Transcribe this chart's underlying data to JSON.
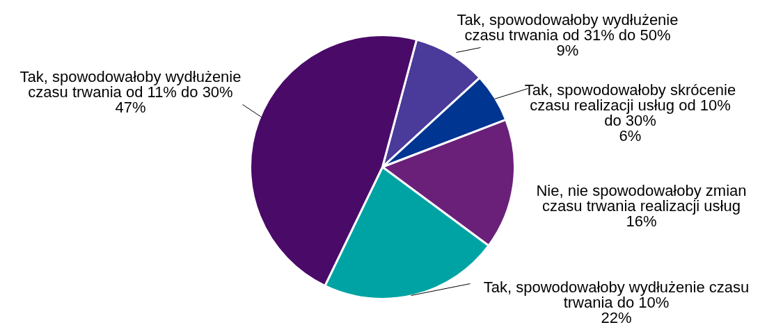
{
  "chart_data": {
    "type": "pie",
    "categories": [
      "Tak, spowodowałoby wydłużenie czasu trwania od 31% do 50%",
      "Tak, spowodowałoby skrócenie czasu realizacji usług od 10% do 30%",
      "Nie, nie spowodowałoby zmian czasu trwania realizacji usług",
      "Tak, spowodowałoby wydłużenie czasu trwania do 10%",
      "Tak, spowodowałoby wydłużenie czasu trwania od 11% do 30%"
    ],
    "values": [
      9,
      6,
      16,
      22,
      47
    ],
    "colors": [
      "#4a3a9a",
      "#003591",
      "#6a2079",
      "#00a3a3",
      "#4a0a68"
    ],
    "value_labels": [
      "9%",
      "6%",
      "16%",
      "22%",
      "47%"
    ]
  }
}
